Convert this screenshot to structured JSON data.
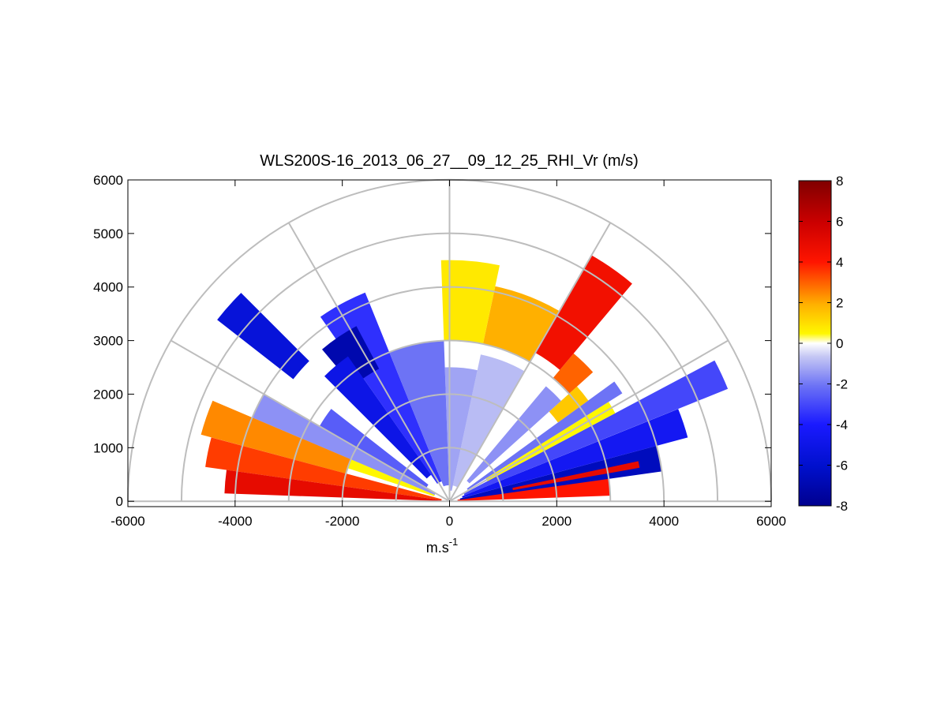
{
  "chart_data": {
    "type": "heatmap",
    "projection": "polar-rhi-half-disc",
    "title": "WLS200S-16_2013_06_27__09_12_25_RHI_Vr (m/s)",
    "xlabel": "m.s",
    "xlabel_superscript": "-1",
    "ylabel": "",
    "xlim": [
      -6000,
      6000
    ],
    "ylim": [
      -100,
      6000
    ],
    "xticks": [
      -6000,
      -4000,
      -2000,
      0,
      2000,
      4000,
      6000
    ],
    "yticks": [
      0,
      1000,
      2000,
      3000,
      4000,
      5000,
      6000
    ],
    "range_rings": [
      1000,
      2000,
      3000,
      4000,
      5000,
      6000
    ],
    "radial_lines_deg": [
      0,
      30,
      60,
      90,
      120,
      150,
      180
    ],
    "grid": true,
    "colorbar": {
      "min": -8,
      "max": 8,
      "ticks": [
        -8,
        -6,
        -4,
        -2,
        0,
        2,
        4,
        6,
        8
      ],
      "position": "right"
    },
    "sectors": [
      {
        "az_deg": [
          2,
          10
        ],
        "range_m": [
          150,
          3000
        ],
        "vr": 4
      },
      {
        "az_deg": [
          8,
          15
        ],
        "range_m": [
          200,
          4000
        ],
        "vr": -6.5
      },
      {
        "az_deg": [
          10,
          12
        ],
        "range_m": [
          1200,
          3600
        ],
        "vr": 5
      },
      {
        "az_deg": [
          15,
          22
        ],
        "range_m": [
          250,
          4600
        ],
        "vr": -4.5
      },
      {
        "az_deg": [
          22,
          28
        ],
        "range_m": [
          300,
          5600
        ],
        "vr": -3
      },
      {
        "az_deg": [
          28,
          32
        ],
        "range_m": [
          800,
          3500
        ],
        "vr": 0.5
      },
      {
        "az_deg": [
          32,
          36
        ],
        "range_m": [
          400,
          3800
        ],
        "vr": -2
      },
      {
        "az_deg": [
          36,
          42
        ],
        "range_m": [
          2500,
          3200
        ],
        "vr": 1.5
      },
      {
        "az_deg": [
          42,
          50
        ],
        "range_m": [
          500,
          2800
        ],
        "vr": -1.5
      },
      {
        "az_deg": [
          42,
          50
        ],
        "range_m": [
          3000,
          3600
        ],
        "vr": 3
      },
      {
        "az_deg": [
          50,
          60
        ],
        "range_m": [
          3200,
          5300
        ],
        "vr": 4.5
      },
      {
        "az_deg": [
          60,
          78
        ],
        "range_m": [
          300,
          2800
        ],
        "vr": -0.8
      },
      {
        "az_deg": [
          60,
          78
        ],
        "range_m": [
          3000,
          4100
        ],
        "vr": 2
      },
      {
        "az_deg": [
          78,
          92
        ],
        "range_m": [
          200,
          2500
        ],
        "vr": -1.2
      },
      {
        "az_deg": [
          78,
          92
        ],
        "range_m": [
          3000,
          4500
        ],
        "vr": 0.8
      },
      {
        "az_deg": [
          92,
          112
        ],
        "range_m": [
          300,
          3000
        ],
        "vr": -2
      },
      {
        "az_deg": [
          112,
          125
        ],
        "range_m": [
          400,
          4200
        ],
        "vr": -3.5
      },
      {
        "az_deg": [
          118,
          130
        ],
        "range_m": [
          2800,
          3700
        ],
        "vr": -7
      },
      {
        "az_deg": [
          125,
          135
        ],
        "range_m": [
          600,
          3300
        ],
        "vr": -5
      },
      {
        "az_deg": [
          135,
          142
        ],
        "range_m": [
          3700,
          5500
        ],
        "vr": -5.5
      },
      {
        "az_deg": [
          142,
          150
        ],
        "range_m": [
          500,
          2800
        ],
        "vr": -2.5
      },
      {
        "az_deg": [
          150,
          157
        ],
        "range_m": [
          300,
          4000
        ],
        "vr": -1.5
      },
      {
        "az_deg": [
          157,
          162
        ],
        "range_m": [
          300,
          2000
        ],
        "vr": 0.5
      },
      {
        "az_deg": [
          157,
          165
        ],
        "range_m": [
          2000,
          4800
        ],
        "vr": 2.5
      },
      {
        "az_deg": [
          165,
          172
        ],
        "range_m": [
          150,
          4600
        ],
        "vr": 3.5
      },
      {
        "az_deg": [
          172,
          178
        ],
        "range_m": [
          150,
          4200
        ],
        "vr": 5
      }
    ]
  }
}
